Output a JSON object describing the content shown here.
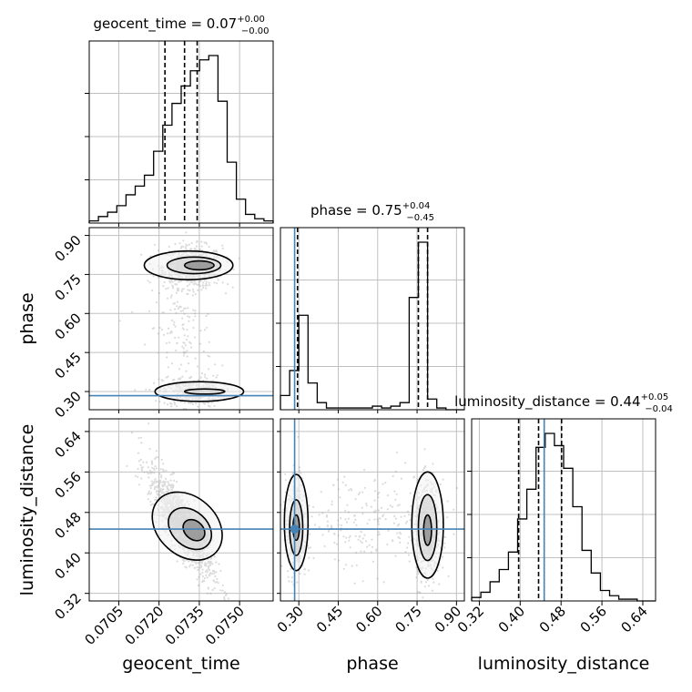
{
  "colors": {
    "truth": "#4682b4",
    "hist": "#000000",
    "grid": "#c0c0c0",
    "scatter": "#9a9a9a",
    "background": "#ffffff"
  },
  "chart_data": {
    "type": "corner",
    "parameters": [
      "geocent_time",
      "phase",
      "luminosity_distance"
    ],
    "titles": {
      "geocent_time": {
        "prefix": "geocent_time = 0.07",
        "sup": "+0.00",
        "sub": "−0.00"
      },
      "phase": {
        "prefix": "phase = 0.75",
        "sup": "+0.04",
        "sub": "−0.45"
      },
      "luminosity_distance": {
        "prefix": "luminosity_distance = 0.44",
        "sup": "+0.05",
        "sub": "−0.04"
      }
    },
    "axis_labels": {
      "geocent_time": "geocent_time",
      "phase": "phase",
      "luminosity_distance": "luminosity_distance"
    },
    "ranges": {
      "geocent_time": [
        0.0694,
        0.07625
      ],
      "phase": [
        0.23,
        0.93
      ],
      "luminosity_distance": [
        0.305,
        0.665
      ]
    },
    "ticks": {
      "geocent_time": [
        "0.0705",
        "0.0720",
        "0.0735",
        "0.0750"
      ],
      "phase": [
        "0.30",
        "0.45",
        "0.60",
        "0.75",
        "0.90"
      ],
      "luminosity_distance": [
        "0.32",
        "0.40",
        "0.48",
        "0.56",
        "0.64"
      ]
    },
    "truths": {
      "phase": 0.284,
      "luminosity_distance": 0.447
    },
    "quantiles": {
      "geocent_time": [
        0.07222,
        0.07295,
        0.07342
      ],
      "phase": [
        0.295,
        0.755,
        0.79
      ],
      "luminosity_distance": [
        0.397,
        0.436,
        0.481
      ]
    },
    "histograms": {
      "geocent_time": [
        1,
        3,
        5,
        8,
        13,
        17,
        22,
        33,
        45,
        55,
        63,
        70,
        75,
        77,
        56,
        28,
        11,
        4,
        2,
        1
      ],
      "phase": [
        8,
        22,
        53,
        15,
        4,
        1,
        1,
        1,
        1,
        1,
        2,
        1,
        2,
        4,
        63,
        94,
        6,
        1,
        0,
        0
      ],
      "luminosity_distance": [
        2,
        5,
        11,
        18,
        28,
        47,
        64,
        88,
        96,
        89,
        76,
        54,
        29,
        16,
        6,
        3,
        1,
        1,
        0,
        0
      ]
    },
    "gridded": true
  }
}
